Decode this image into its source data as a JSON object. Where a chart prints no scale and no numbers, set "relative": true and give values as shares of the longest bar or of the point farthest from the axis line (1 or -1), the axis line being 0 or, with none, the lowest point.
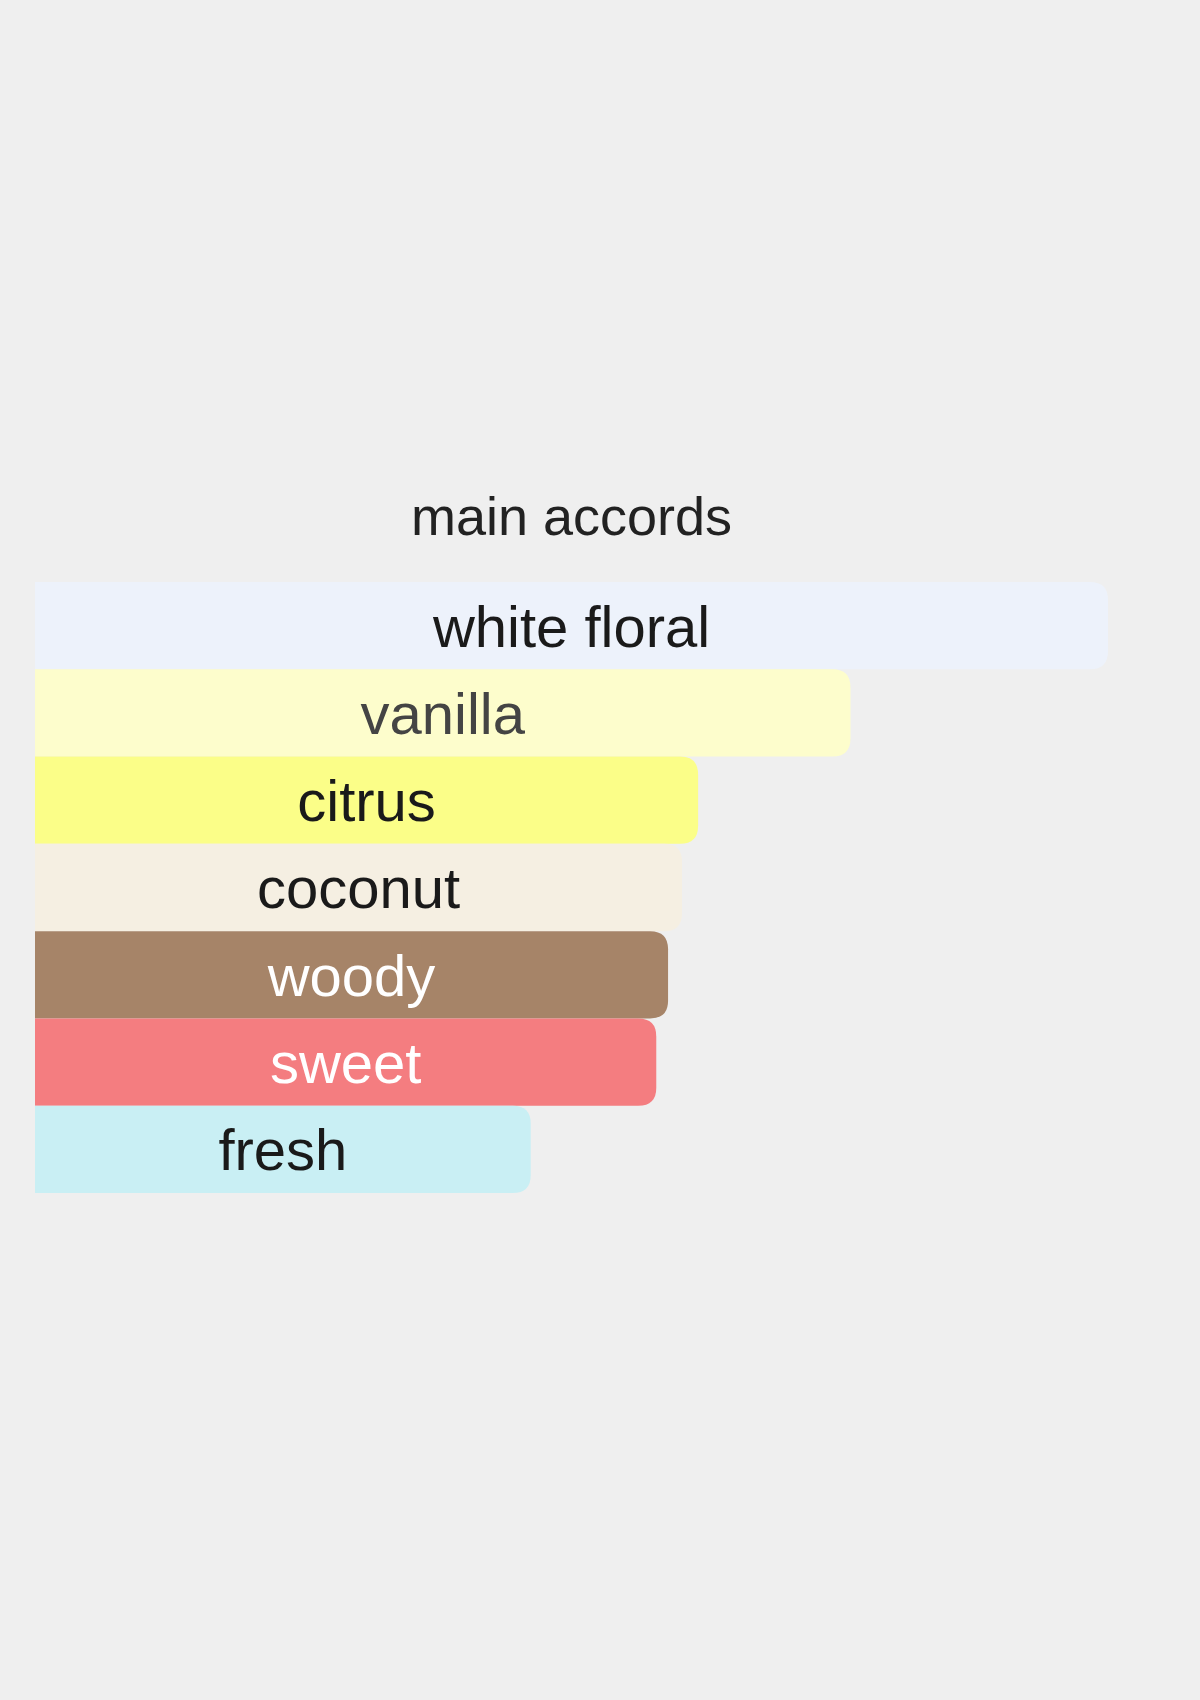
{
  "chart_data": {
    "type": "bar",
    "orientation": "horizontal",
    "relative": true,
    "title": "main accords",
    "categories": [
      "white floral",
      "vanilla",
      "citrus",
      "coconut",
      "woody",
      "sweet",
      "fresh"
    ],
    "values": [
      1,
      0.76,
      0.618,
      0.603,
      0.59,
      0.579,
      0.462
    ],
    "colors": [
      "#edf2fb",
      "#fdfdcc",
      "#fbfe88",
      "#f5efe2",
      "#a68468",
      "#f47d80",
      "#c9eff4"
    ]
  }
}
